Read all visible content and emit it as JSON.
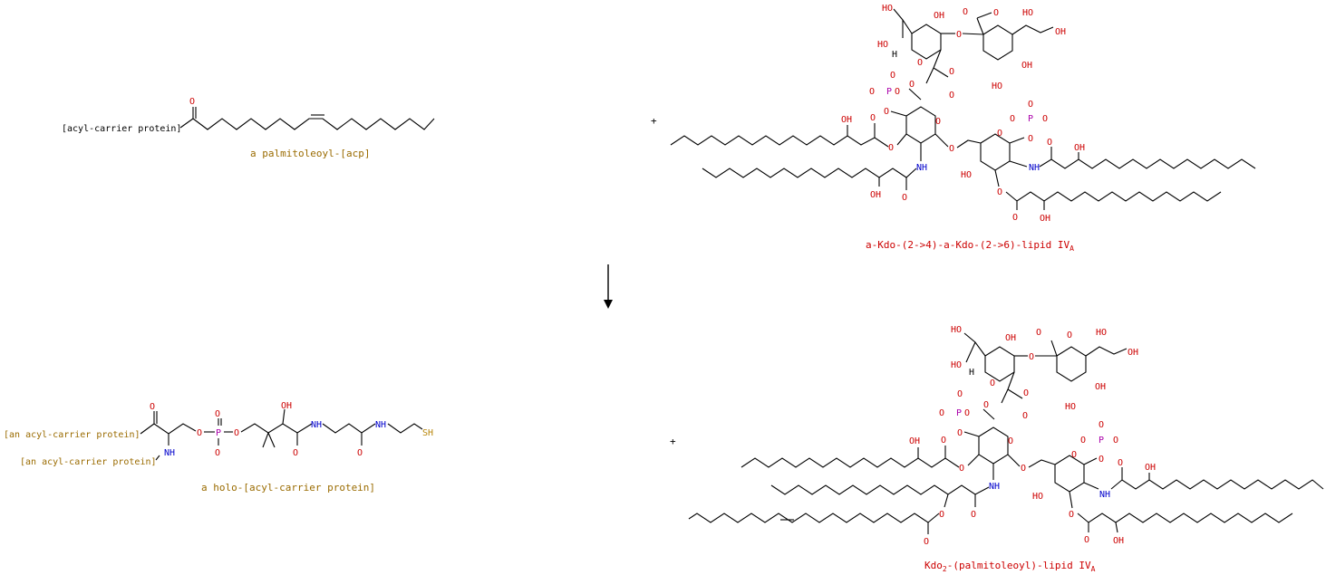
{
  "colors": {
    "background": "#ffffff",
    "bond": "#000000",
    "oxygen": "#cc0000",
    "nitrogen": "#0000cc",
    "phosphorus": "#aa00aa",
    "sulfur": "#b8860b",
    "compound_label_gold": "#9a6b00",
    "compound_label_red": "#cc0000"
  },
  "reaction": {
    "plus_sign": "+",
    "arrow_direction": "down"
  },
  "reactants": [
    {
      "label": "a palmitoleoyl-[acp]",
      "attached_group": "[acyl-carrier protein]"
    },
    {
      "label_main": "a-Kdo-(2->4)-a-Kdo-(2->6)-lipid IV",
      "label_subscript": "A"
    }
  ],
  "products": [
    {
      "label": "a holo-[acyl-carrier protein]",
      "group_upper": "[an acyl-carrier protein]",
      "group_lower": "[an acyl-carrier protein]"
    },
    {
      "label_part1": "Kdo",
      "label_part1_subscript": "2",
      "label_part2": "-(palmitoleoyl)-lipid IV",
      "label_part2_subscript": "A"
    }
  ],
  "atom_labels": {
    "O": "O",
    "OH": "OH",
    "HO": "HO",
    "O_minus": "O",
    "minus": "−",
    "P": "P",
    "N": "N",
    "NH": "NH",
    "H": "H",
    "SH": "SH",
    "O_eq_P": "O=P",
    "P_eq_O": "P=O"
  }
}
